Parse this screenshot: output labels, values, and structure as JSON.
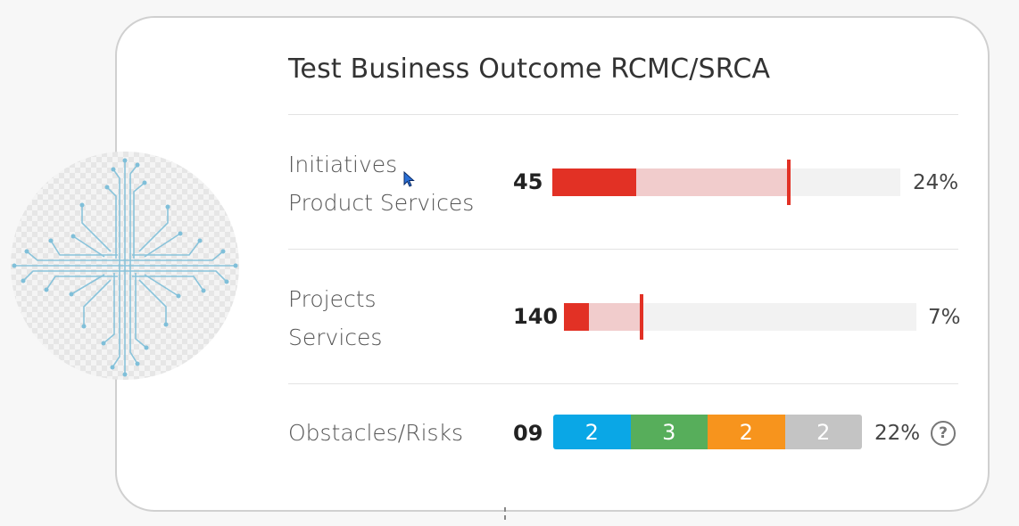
{
  "card": {
    "title": "Test Business Outcome RCMC/SRCA",
    "rows": [
      {
        "label_line1": "Initiatives",
        "label_line2": "Product Services",
        "count": "45",
        "percent_text": "24%",
        "dark_fill_fraction": 0.24,
        "light_fill_fraction": 0.68,
        "marker_fraction": 0.68
      },
      {
        "label_line1": "Projects",
        "label_line2": "Services",
        "count": "140",
        "percent_text": "7%",
        "dark_fill_fraction": 0.07,
        "light_fill_fraction": 0.22,
        "marker_fraction": 0.22
      },
      {
        "label_line1": "Obstacles/Risks",
        "count": "09",
        "percent_text": "22%",
        "segments": [
          {
            "value": "2",
            "color": "#0aa7e6"
          },
          {
            "value": "3",
            "color": "#57ae5b"
          },
          {
            "value": "2",
            "color": "#f7941d"
          },
          {
            "value": "2",
            "color": "#c4c4c4"
          }
        ],
        "help_icon": "help-circle-icon",
        "help_symbol": "?"
      }
    ]
  },
  "avatar_icon": "circuit-board-icon",
  "colors": {
    "accent_red": "#e23125",
    "light_red": "#f1cccc",
    "track": "#f2f2f2",
    "circuit": "#7fbfd9"
  }
}
